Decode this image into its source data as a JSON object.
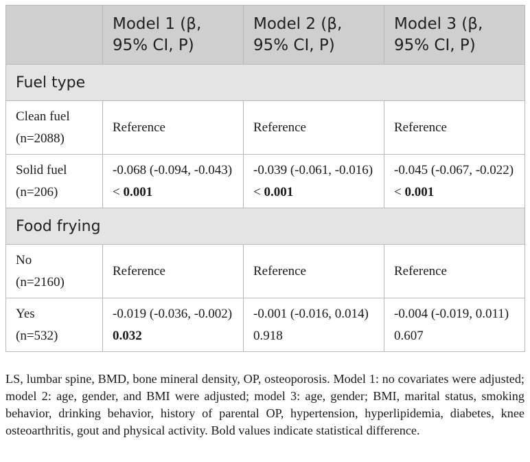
{
  "table": {
    "headers": [
      "",
      "Model 1 (β, 95% CI, P)",
      "Model 2 (β, 95% CI, P)",
      "Model 3 (β, 95% CI, P)"
    ],
    "sections": [
      {
        "title": "Fuel type",
        "rows": [
          {
            "label_line1": "Clean fuel",
            "label_line2": "(n=2088)",
            "cells": [
              {
                "text": "Reference",
                "p": ""
              },
              {
                "text": "Reference",
                "p": ""
              },
              {
                "text": "Reference",
                "p": ""
              }
            ]
          },
          {
            "label_line1": "Solid fuel",
            "label_line2": "(n=206)",
            "cells": [
              {
                "text": "-0.068 (-0.094, -0.043) < ",
                "p": "0.001"
              },
              {
                "text": "-0.039 (-0.061, -0.016) < ",
                "p": "0.001"
              },
              {
                "text": "-0.045 (-0.067, -0.022) < ",
                "p": "0.001"
              }
            ]
          }
        ]
      },
      {
        "title": "Food frying",
        "rows": [
          {
            "label_line1": "No",
            "label_line2": "(n=2160)",
            "cells": [
              {
                "text": "Reference",
                "p": ""
              },
              {
                "text": "Reference",
                "p": ""
              },
              {
                "text": "Reference",
                "p": ""
              }
            ]
          },
          {
            "label_line1": "Yes",
            "label_line2": "(n=532)",
            "cells": [
              {
                "text": "-0.019 (-0.036, -0.002) ",
                "p": "0.032"
              },
              {
                "text": "-0.001 (-0.016, 0.014) 0.918",
                "p": ""
              },
              {
                "text": "-0.004 (-0.019, 0.011) 0.607",
                "p": ""
              }
            ]
          }
        ]
      }
    ]
  },
  "footnote": "LS, lumbar spine, BMD, bone mineral density, OP, osteoporosis. Model 1: no covariates were adjusted; model 2: age, gender, and BMI were adjusted; model 3: age, gender; BMI, marital status, smoking behavior, drinking behavior, history of parental OP, hypertension, hyperlipidemia, diabetes, knee osteoarthritis, gout and physical activity. Bold values indicate statistical difference."
}
